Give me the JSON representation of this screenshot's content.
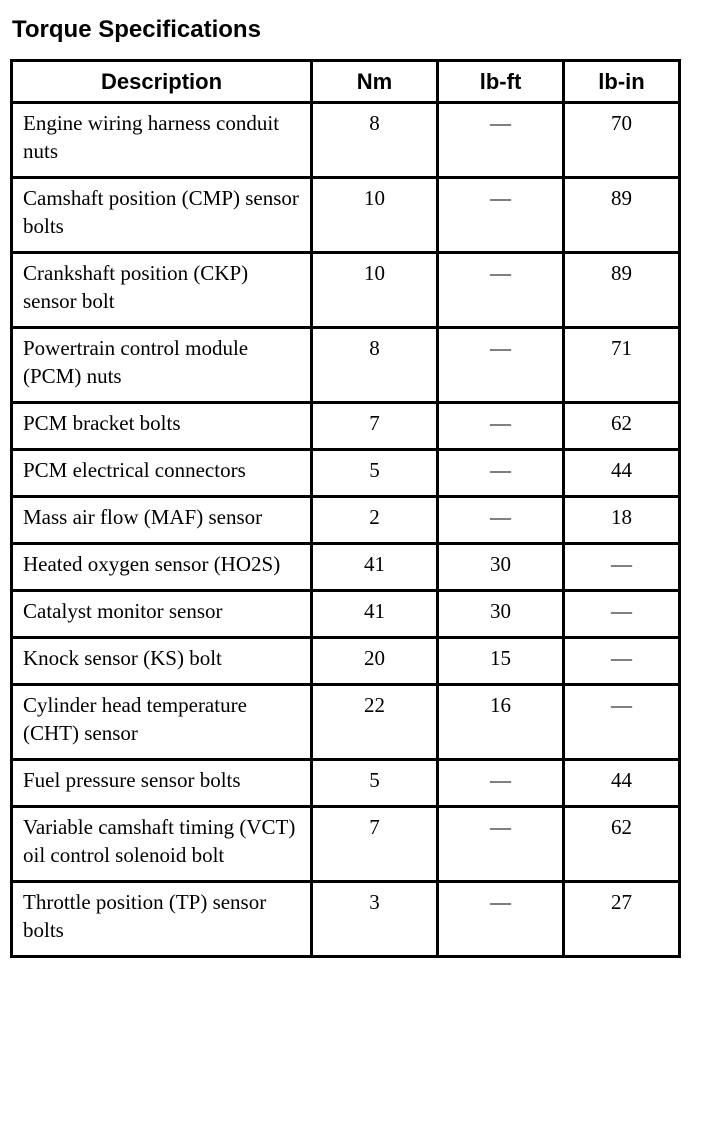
{
  "page_title": "Torque Specifications",
  "colors": {
    "text": "#000000",
    "background": "#ffffff",
    "border": "#000000"
  },
  "table": {
    "columns": [
      "Description",
      "Nm",
      "lb-ft",
      "lb-in"
    ],
    "rows": [
      {
        "description": "Engine wiring harness conduit nuts",
        "nm": "8",
        "lb_ft": "—",
        "lb_in": "70"
      },
      {
        "description": "Camshaft position (CMP) sensor bolts",
        "nm": "10",
        "lb_ft": "—",
        "lb_in": "89"
      },
      {
        "description": "Crankshaft position (CKP) sensor bolt",
        "nm": "10",
        "lb_ft": "—",
        "lb_in": "89"
      },
      {
        "description": "Powertrain control module (PCM) nuts",
        "nm": "8",
        "lb_ft": "—",
        "lb_in": "71"
      },
      {
        "description": "PCM bracket bolts",
        "nm": "7",
        "lb_ft": "—",
        "lb_in": "62"
      },
      {
        "description": "PCM electrical connectors",
        "nm": "5",
        "lb_ft": "—",
        "lb_in": "44"
      },
      {
        "description": "Mass air flow (MAF) sensor",
        "nm": "2",
        "lb_ft": "—",
        "lb_in": "18"
      },
      {
        "description": "Heated oxygen sensor (HO2S)",
        "nm": "41",
        "lb_ft": "30",
        "lb_in": "—"
      },
      {
        "description": "Catalyst monitor sensor",
        "nm": "41",
        "lb_ft": "30",
        "lb_in": "—"
      },
      {
        "description": "Knock sensor (KS) bolt",
        "nm": "20",
        "lb_ft": "15",
        "lb_in": "—"
      },
      {
        "description": "Cylinder head temperature (CHT) sensor",
        "nm": "22",
        "lb_ft": "16",
        "lb_in": "—"
      },
      {
        "description": "Fuel pressure sensor bolts",
        "nm": "5",
        "lb_ft": "—",
        "lb_in": "44"
      },
      {
        "description": "Variable camshaft timing (VCT) oil control solenoid bolt",
        "nm": "7",
        "lb_ft": "—",
        "lb_in": "62"
      },
      {
        "description": "Throttle position (TP) sensor bolts",
        "nm": "3",
        "lb_ft": "—",
        "lb_in": "27"
      }
    ]
  }
}
